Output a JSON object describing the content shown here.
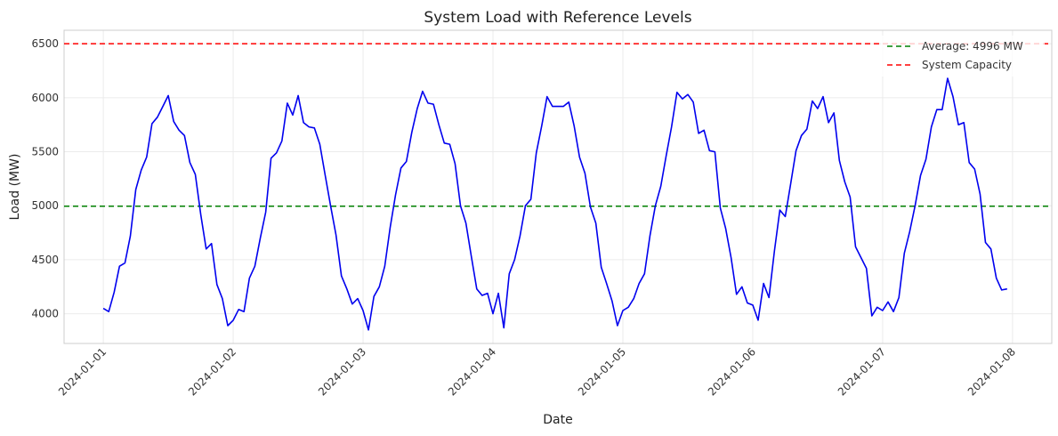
{
  "chart_data": {
    "type": "line",
    "title": "System Load with Reference Levels",
    "xlabel": "Date",
    "ylabel": "Load (MW)",
    "x_range": [
      "2023-12-31T16:45",
      "2024-01-08T07:15"
    ],
    "ylim": [
      3725,
      6625
    ],
    "x_ticks": [
      "2024-01-01",
      "2024-01-02",
      "2024-01-03",
      "2024-01-04",
      "2024-01-05",
      "2024-01-06",
      "2024-01-07",
      "2024-01-08"
    ],
    "y_ticks": [
      "4000",
      "4500",
      "5000",
      "5500",
      "6000",
      "6500"
    ],
    "grid": true,
    "legend_position": "top-right",
    "sampling": "hourly from 2024-01-01 00:00",
    "series": [
      {
        "color": "#0000ee",
        "values": [
          4050,
          4020,
          4200,
          4440,
          4470,
          4720,
          5150,
          5330,
          5450,
          5760,
          5820,
          5920,
          6020,
          5780,
          5700,
          5650,
          5400,
          5290,
          4920,
          4600,
          4650,
          4270,
          4140,
          3890,
          3940,
          4040,
          4020,
          4330,
          4440,
          4700,
          4940,
          5440,
          5490,
          5600,
          5950,
          5840,
          6020,
          5770,
          5730,
          5720,
          5570,
          5280,
          5000,
          4730,
          4350,
          4230,
          4090,
          4140,
          4030,
          3850,
          4160,
          4250,
          4440,
          4800,
          5100,
          5350,
          5410,
          5680,
          5900,
          6060,
          5950,
          5940,
          5750,
          5580,
          5570,
          5390,
          5000,
          4840,
          4530,
          4230,
          4170,
          4190,
          4000,
          4190,
          3870,
          4370,
          4500,
          4720,
          5000,
          5060,
          5490,
          5740,
          6010,
          5920,
          5920,
          5920,
          5960,
          5740,
          5450,
          5300,
          4990,
          4840,
          4430,
          4280,
          4120,
          3890,
          4030,
          4060,
          4140,
          4280,
          4370,
          4720,
          5000,
          5180,
          5460,
          5730,
          6050,
          5990,
          6030,
          5960,
          5670,
          5700,
          5510,
          5500,
          4980,
          4790,
          4520,
          4180,
          4250,
          4100,
          4080,
          3940,
          4280,
          4150,
          4580,
          4960,
          4900,
          5200,
          5510,
          5650,
          5710,
          5970,
          5900,
          6010,
          5770,
          5860,
          5420,
          5220,
          5080,
          4620,
          4520,
          4420,
          3980,
          4060,
          4030,
          4110,
          4020,
          4150,
          4560,
          4760,
          5000,
          5280,
          5430,
          5730,
          5890,
          5890,
          6180,
          6010,
          5750,
          5770,
          5400,
          5340,
          5110,
          4660,
          4600,
          4330,
          4220,
          4230
        ]
      }
    ],
    "reference_lines": [
      {
        "label": "Average: 4996 MW",
        "value": 4996,
        "color": "#008000",
        "style": "dashed"
      },
      {
        "label": "System Capacity",
        "value": 6500,
        "color": "#ff0000",
        "style": "dashed"
      }
    ]
  }
}
